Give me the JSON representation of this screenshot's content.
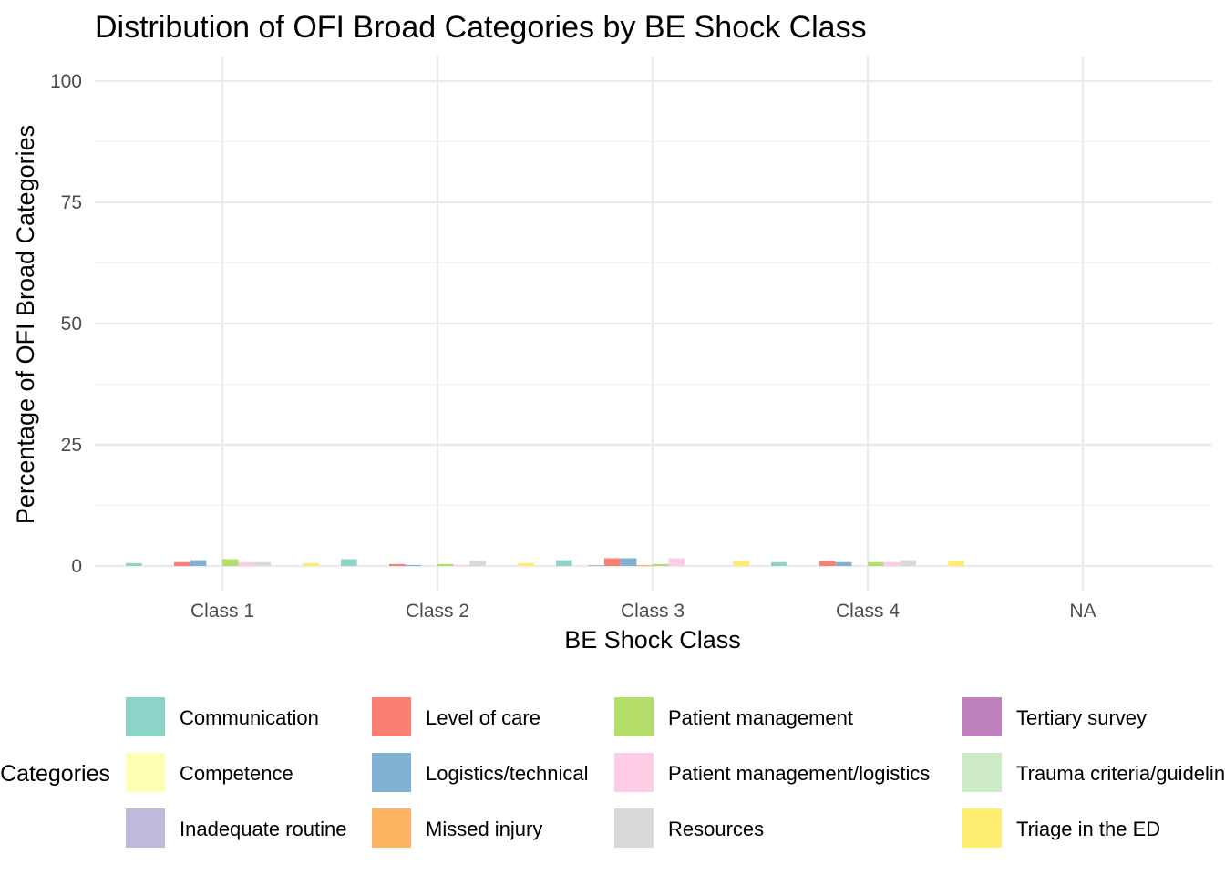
{
  "chart_data": {
    "type": "bar",
    "title": "Distribution of OFI Broad Categories by BE Shock Class",
    "xlabel": "BE Shock Class",
    "ylabel": "Percentage of OFI Broad Categories",
    "ylim": [
      0,
      105
    ],
    "yticks": [
      0,
      25,
      50,
      75,
      100
    ],
    "grid": true,
    "legend_title": "Categories",
    "legend_position": "bottom",
    "categories": [
      "Class 1",
      "Class 2",
      "Class 3",
      "Class 4",
      "NA"
    ],
    "series": [
      {
        "name": "Communication",
        "color": "#8DD3C7",
        "values": [
          0.6,
          1.4,
          1.2,
          0.8,
          0
        ]
      },
      {
        "name": "Competence",
        "color": "#FFFFB3",
        "values": [
          0,
          0,
          0,
          0,
          0
        ]
      },
      {
        "name": "Inadequate routine",
        "color": "#BEBADA",
        "values": [
          0,
          0,
          0.2,
          0,
          0
        ]
      },
      {
        "name": "Level of care",
        "color": "#FB8072",
        "values": [
          0.8,
          0.4,
          1.6,
          1.0,
          0
        ]
      },
      {
        "name": "Logistics/technical",
        "color": "#80B1D3",
        "values": [
          1.2,
          0.2,
          1.6,
          0.8,
          0
        ]
      },
      {
        "name": "Missed injury",
        "color": "#FDB462",
        "values": [
          0,
          0,
          0.2,
          0,
          0
        ]
      },
      {
        "name": "Patient management",
        "color": "#B3DE69",
        "values": [
          1.4,
          0.4,
          0.4,
          0.8,
          0
        ]
      },
      {
        "name": "Patient management/logistics",
        "color": "#FCCDE5",
        "values": [
          0.8,
          0.2,
          1.6,
          0.8,
          0
        ]
      },
      {
        "name": "Resources",
        "color": "#D9D9D9",
        "values": [
          0.8,
          1.0,
          0,
          1.2,
          0
        ]
      },
      {
        "name": "Tertiary survey",
        "color": "#BC80BD",
        "values": [
          0,
          0,
          0,
          0,
          0
        ]
      },
      {
        "name": "Trauma criteria/guidelines",
        "color": "#CCEBC5",
        "values": [
          0,
          0,
          0,
          0,
          0
        ]
      },
      {
        "name": "Triage in the ED",
        "color": "#FFED6F",
        "values": [
          0.6,
          0.6,
          1.0,
          1.0,
          0
        ]
      }
    ]
  }
}
